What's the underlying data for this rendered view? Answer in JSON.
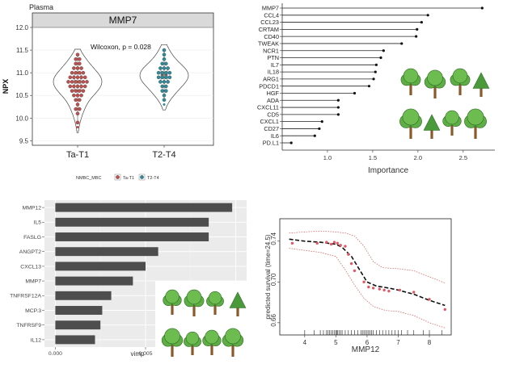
{
  "chart_data": [
    {
      "type": "violin",
      "panel_label": "Plasma",
      "strip_title": "MMP7",
      "ylabel": "NPX",
      "ylim": [
        9.4,
        12.0
      ],
      "yticks": [
        "9.5",
        "10.0",
        "10.5",
        "11.0",
        "11.5",
        "12.0"
      ],
      "categories": [
        "Ta-T1",
        "T2-T4"
      ],
      "annotation": "Wilcoxon, p = 0.028",
      "legend": {
        "title": "NMBC_MBC",
        "entries": [
          "Ta-T1",
          "T2-T4"
        ]
      },
      "series": [
        {
          "name": "Ta-T1",
          "color": "#c0504d",
          "median": 10.8,
          "outlier": 9.8,
          "values": [
            11.4,
            11.3,
            11.3,
            11.2,
            11.2,
            11.1,
            11.1,
            11.1,
            11.0,
            11.0,
            11.0,
            11.0,
            10.9,
            10.9,
            10.9,
            10.9,
            10.9,
            10.8,
            10.8,
            10.8,
            10.8,
            10.8,
            10.8,
            10.7,
            10.7,
            10.7,
            10.7,
            10.7,
            10.6,
            10.6,
            10.6,
            10.6,
            10.5,
            10.5,
            10.5,
            10.4,
            10.4,
            10.3,
            10.2,
            10.2,
            10.1,
            9.9
          ]
        },
        {
          "name": "T2-T4",
          "color": "#2e8b9a",
          "median": 10.95,
          "outlier": 10.3,
          "values": [
            11.5,
            11.4,
            11.3,
            11.2,
            11.2,
            11.1,
            11.1,
            11.1,
            11.0,
            11.0,
            11.0,
            11.0,
            10.9,
            10.9,
            10.9,
            10.9,
            10.8,
            10.8,
            10.8,
            10.7,
            10.7,
            10.6,
            10.6,
            10.5,
            10.4
          ]
        }
      ]
    },
    {
      "type": "lollipop",
      "xlabel": "Importance",
      "xlim": [
        0.5,
        2.85
      ],
      "xticks": [
        "1.0",
        "1.5",
        "2.0",
        "2.5"
      ],
      "categories": [
        "MMP7",
        "CCL4",
        "CCL23",
        "CRTAM",
        "CD40",
        "TWEAK",
        "NCR1",
        "PTN",
        "IL7",
        "IL18",
        "ARG1",
        "PDCD1",
        "HGF",
        "ADA",
        "CXCL11",
        "CD5",
        "CXCL1",
        "CD27",
        "IL6",
        "PD.L1"
      ],
      "values": [
        2.71,
        2.11,
        2.04,
        1.99,
        1.98,
        1.82,
        1.62,
        1.59,
        1.54,
        1.53,
        1.51,
        1.46,
        1.3,
        1.12,
        1.12,
        1.12,
        0.94,
        0.91,
        0.86,
        0.6
      ]
    },
    {
      "type": "bar",
      "xlabel": "vimp",
      "xticks": [
        "0.000",
        "0.005"
      ],
      "xlim": [
        -0.0006,
        0.0106
      ],
      "categories": [
        "MMP12",
        "IL5",
        "FASLG",
        "ANGPT2",
        "CXCL13",
        "MMP7",
        "TNFRSF12A",
        "MCP.3",
        "TNFRSF9",
        "IL12"
      ],
      "values": [
        0.0098,
        0.0085,
        0.0085,
        0.0057,
        0.005,
        0.0043,
        0.0031,
        0.0026,
        0.0025,
        0.0022
      ]
    },
    {
      "type": "line",
      "xlabel": "MMP12",
      "ylabel": "predicted survival (time=24.5)",
      "xlim": [
        3.2,
        8.7
      ],
      "ylim": [
        0.648,
        0.762
      ],
      "xticks": [
        "4",
        "5",
        "6",
        "7",
        "8"
      ],
      "yticks": [
        "0.66",
        "0.70",
        "0.74"
      ],
      "fit": [
        [
          3.5,
          0.742
        ],
        [
          4.0,
          0.74
        ],
        [
          4.5,
          0.739
        ],
        [
          5.0,
          0.737
        ],
        [
          5.2,
          0.734
        ],
        [
          5.5,
          0.725
        ],
        [
          5.8,
          0.71
        ],
        [
          6.0,
          0.7
        ],
        [
          6.3,
          0.696
        ],
        [
          6.7,
          0.694
        ],
        [
          7.0,
          0.692
        ],
        [
          7.5,
          0.688
        ],
        [
          8.0,
          0.682
        ],
        [
          8.5,
          0.677
        ]
      ],
      "upper": [
        [
          3.5,
          0.748
        ],
        [
          4.0,
          0.749
        ],
        [
          4.5,
          0.75
        ],
        [
          5.0,
          0.749
        ],
        [
          5.3,
          0.748
        ],
        [
          5.6,
          0.745
        ],
        [
          5.9,
          0.735
        ],
        [
          6.2,
          0.72
        ],
        [
          6.5,
          0.714
        ],
        [
          7.0,
          0.713
        ],
        [
          7.5,
          0.711
        ],
        [
          8.0,
          0.705
        ],
        [
          8.5,
          0.699
        ]
      ],
      "lower": [
        [
          3.5,
          0.733
        ],
        [
          4.0,
          0.731
        ],
        [
          4.5,
          0.729
        ],
        [
          5.0,
          0.725
        ],
        [
          5.3,
          0.712
        ],
        [
          5.6,
          0.697
        ],
        [
          5.9,
          0.684
        ],
        [
          6.2,
          0.676
        ],
        [
          6.6,
          0.672
        ],
        [
          7.0,
          0.671
        ],
        [
          7.5,
          0.667
        ],
        [
          8.0,
          0.66
        ],
        [
          8.5,
          0.655
        ]
      ],
      "points": [
        [
          3.6,
          0.738
        ],
        [
          4.4,
          0.738
        ],
        [
          4.7,
          0.739
        ],
        [
          4.85,
          0.737
        ],
        [
          4.95,
          0.739
        ],
        [
          5.05,
          0.738
        ],
        [
          5.15,
          0.736
        ],
        [
          5.3,
          0.735
        ],
        [
          5.4,
          0.727
        ],
        [
          5.5,
          0.718
        ],
        [
          5.6,
          0.711
        ],
        [
          5.9,
          0.7
        ],
        [
          6.05,
          0.695
        ],
        [
          6.2,
          0.694
        ],
        [
          6.4,
          0.693
        ],
        [
          6.55,
          0.692
        ],
        [
          6.7,
          0.691
        ],
        [
          7.05,
          0.692
        ],
        [
          7.5,
          0.69
        ],
        [
          8.0,
          0.683
        ],
        [
          8.5,
          0.673
        ]
      ],
      "rug": [
        4.0,
        4.3,
        4.5,
        4.6,
        4.7,
        4.75,
        4.8,
        4.85,
        4.9,
        4.95,
        5.0,
        5.02,
        5.05,
        5.1,
        5.15,
        5.2,
        5.3,
        5.4,
        5.5,
        5.6,
        5.7,
        5.8,
        5.85,
        5.9,
        5.95,
        6.0,
        6.05,
        6.1,
        6.15,
        6.2,
        6.3,
        6.4,
        6.5,
        6.6,
        6.7,
        6.8,
        6.9,
        7.0,
        7.1,
        7.3,
        7.5,
        7.8,
        8.0,
        8.4
      ]
    }
  ]
}
